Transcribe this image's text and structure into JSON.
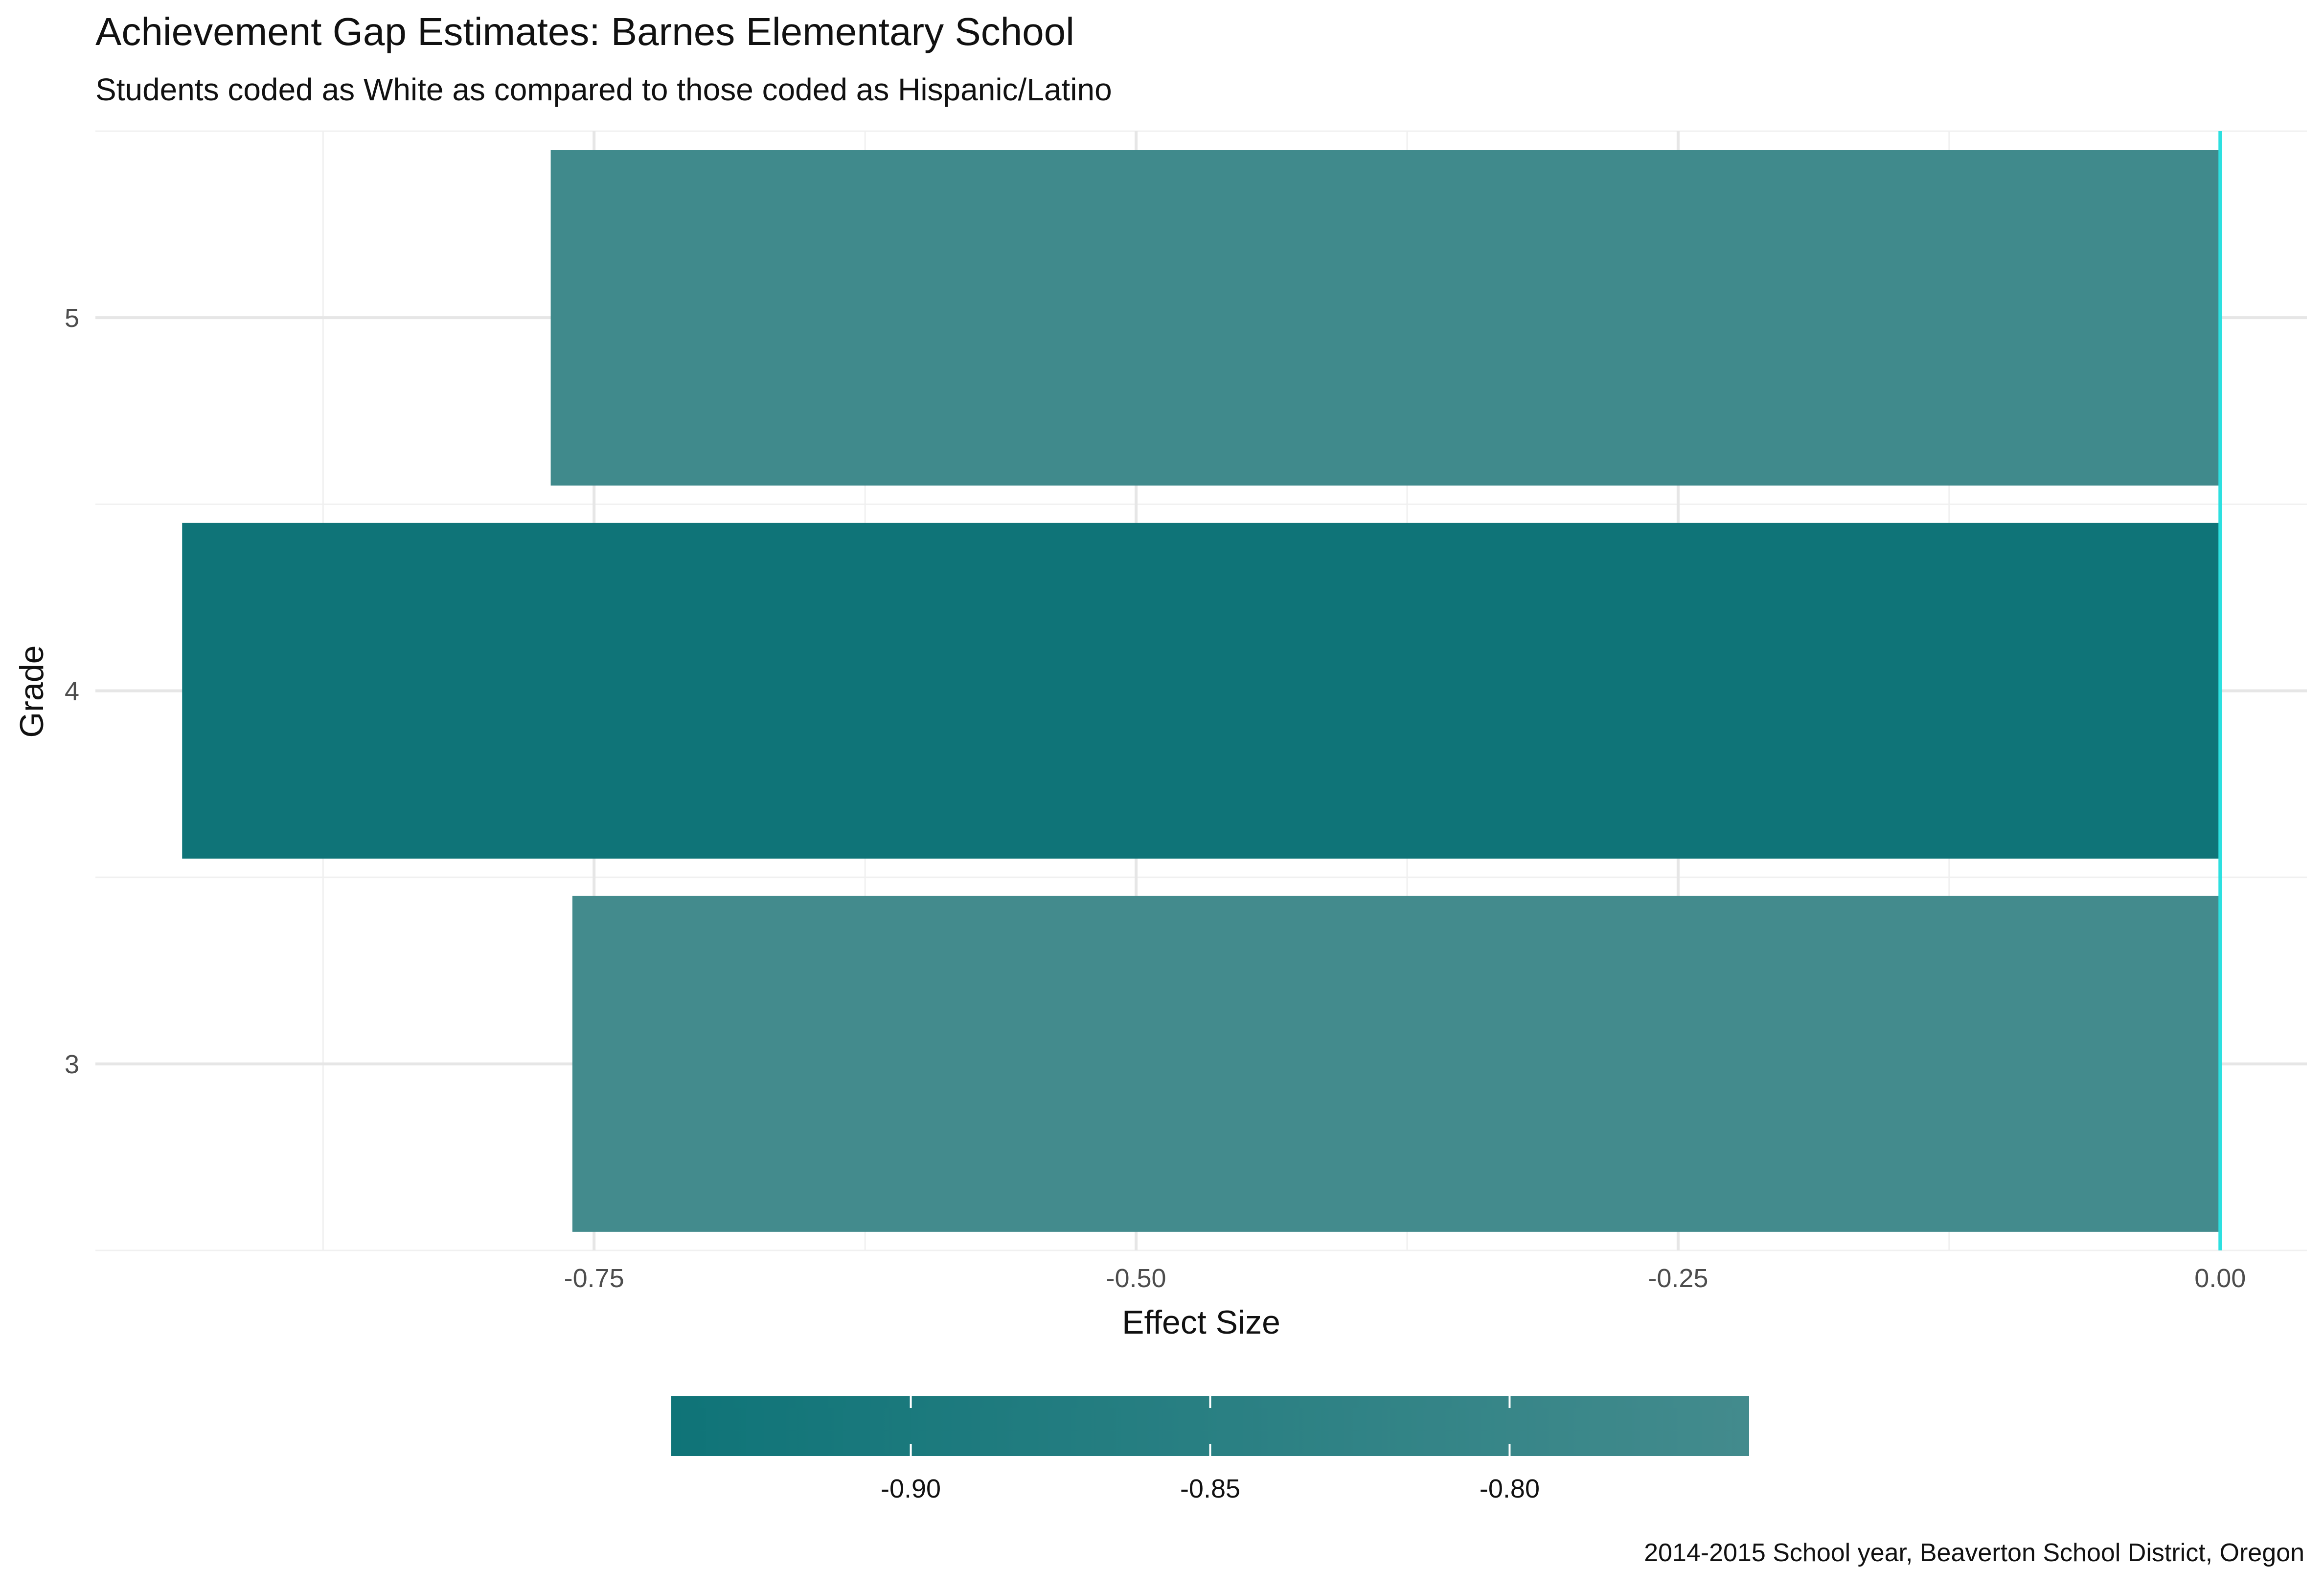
{
  "chart_data": {
    "type": "bar",
    "orientation": "horizontal",
    "title": "Achievement Gap Estimates: Barnes Elementary School",
    "subtitle": "Students coded as White as compared to those coded as Hispanic/Latino",
    "xlabel": "Effect Size",
    "ylabel": "Grade",
    "caption": "2014-2015 School year, Beaverton School District, Oregon",
    "categories": [
      "3",
      "4",
      "5"
    ],
    "values": [
      -0.76,
      -0.94,
      -0.77
    ],
    "xlim": [
      -0.98,
      0.04
    ],
    "xticks": [
      -0.75,
      -0.5,
      -0.25,
      0.0
    ],
    "xtick_labels": [
      "-0.75",
      "-0.50",
      "-0.25",
      "0.00"
    ],
    "grid": true,
    "reference_line": {
      "x": 0,
      "color": "#2de0e0"
    },
    "legend": {
      "type": "colorbar",
      "placement": "bottom",
      "range": [
        -0.94,
        -0.76
      ],
      "ticks": [
        -0.9,
        -0.85,
        -0.8
      ],
      "tick_labels": [
        "-0.90",
        "-0.85",
        "-0.80"
      ],
      "color_low": "#0f7478",
      "color_high": "#438b8d"
    }
  }
}
